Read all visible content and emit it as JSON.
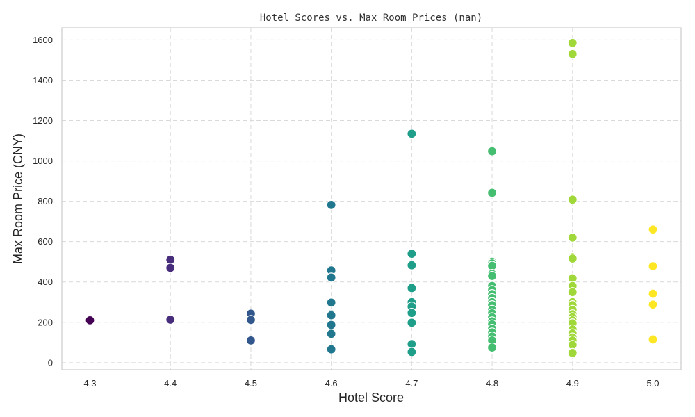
{
  "chart_data": {
    "type": "scatter",
    "title": "Hotel Scores vs. Max Room Prices (nan)",
    "xlabel": "Hotel Score",
    "ylabel": "Max Room Price (CNY)",
    "xlim": [
      4.265,
      5.035
    ],
    "ylim": [
      -35,
      1660
    ],
    "xticks": [
      "4.3",
      "4.4",
      "4.5",
      "4.6",
      "4.7",
      "4.8",
      "4.9",
      "5.0"
    ],
    "yticks": [
      "0",
      "200",
      "400",
      "600",
      "800",
      "1000",
      "1200",
      "1400",
      "1600"
    ],
    "grid": true,
    "colors": {
      "4.3": "#440154",
      "4.4": "#472d7b",
      "4.5": "#31578c",
      "4.6": "#21788e",
      "4.7": "#1f9e89",
      "4.8": "#45be71",
      "4.9": "#a0d83a",
      "5.0": "#fde725"
    },
    "points": [
      {
        "x": 4.3,
        "y": 210
      },
      {
        "x": 4.4,
        "y": 510
      },
      {
        "x": 4.4,
        "y": 470
      },
      {
        "x": 4.4,
        "y": 213
      },
      {
        "x": 4.5,
        "y": 243
      },
      {
        "x": 4.5,
        "y": 212
      },
      {
        "x": 4.5,
        "y": 110
      },
      {
        "x": 4.6,
        "y": 782
      },
      {
        "x": 4.6,
        "y": 457
      },
      {
        "x": 4.6,
        "y": 422
      },
      {
        "x": 4.6,
        "y": 298
      },
      {
        "x": 4.6,
        "y": 240
      },
      {
        "x": 4.6,
        "y": 235
      },
      {
        "x": 4.6,
        "y": 187
      },
      {
        "x": 4.6,
        "y": 143
      },
      {
        "x": 4.6,
        "y": 66
      },
      {
        "x": 4.7,
        "y": 1135
      },
      {
        "x": 4.7,
        "y": 540
      },
      {
        "x": 4.7,
        "y": 483
      },
      {
        "x": 4.7,
        "y": 370
      },
      {
        "x": 4.7,
        "y": 300
      },
      {
        "x": 4.7,
        "y": 278
      },
      {
        "x": 4.7,
        "y": 247
      },
      {
        "x": 4.7,
        "y": 198
      },
      {
        "x": 4.7,
        "y": 92
      },
      {
        "x": 4.7,
        "y": 53
      },
      {
        "x": 4.8,
        "y": 1048
      },
      {
        "x": 4.8,
        "y": 842
      },
      {
        "x": 4.8,
        "y": 500
      },
      {
        "x": 4.8,
        "y": 492
      },
      {
        "x": 4.8,
        "y": 480
      },
      {
        "x": 4.8,
        "y": 440
      },
      {
        "x": 4.8,
        "y": 430
      },
      {
        "x": 4.8,
        "y": 380
      },
      {
        "x": 4.8,
        "y": 360
      },
      {
        "x": 4.8,
        "y": 340
      },
      {
        "x": 4.8,
        "y": 320
      },
      {
        "x": 4.8,
        "y": 300
      },
      {
        "x": 4.8,
        "y": 285
      },
      {
        "x": 4.8,
        "y": 262
      },
      {
        "x": 4.8,
        "y": 245
      },
      {
        "x": 4.8,
        "y": 225
      },
      {
        "x": 4.8,
        "y": 205
      },
      {
        "x": 4.8,
        "y": 190
      },
      {
        "x": 4.8,
        "y": 168
      },
      {
        "x": 4.8,
        "y": 150
      },
      {
        "x": 4.8,
        "y": 130
      },
      {
        "x": 4.8,
        "y": 110
      },
      {
        "x": 4.8,
        "y": 75
      },
      {
        "x": 4.9,
        "y": 1585
      },
      {
        "x": 4.9,
        "y": 1530
      },
      {
        "x": 4.9,
        "y": 808
      },
      {
        "x": 4.9,
        "y": 620
      },
      {
        "x": 4.9,
        "y": 522
      },
      {
        "x": 4.9,
        "y": 516
      },
      {
        "x": 4.9,
        "y": 418
      },
      {
        "x": 4.9,
        "y": 380
      },
      {
        "x": 4.9,
        "y": 350
      },
      {
        "x": 4.9,
        "y": 300
      },
      {
        "x": 4.9,
        "y": 285
      },
      {
        "x": 4.9,
        "y": 262
      },
      {
        "x": 4.9,
        "y": 240
      },
      {
        "x": 4.9,
        "y": 225
      },
      {
        "x": 4.9,
        "y": 210
      },
      {
        "x": 4.9,
        "y": 195
      },
      {
        "x": 4.9,
        "y": 165
      },
      {
        "x": 4.9,
        "y": 145
      },
      {
        "x": 4.9,
        "y": 125
      },
      {
        "x": 4.9,
        "y": 110
      },
      {
        "x": 4.9,
        "y": 88
      },
      {
        "x": 4.9,
        "y": 48
      },
      {
        "x": 5.0,
        "y": 660
      },
      {
        "x": 5.0,
        "y": 478
      },
      {
        "x": 5.0,
        "y": 342
      },
      {
        "x": 5.0,
        "y": 288
      },
      {
        "x": 5.0,
        "y": 115
      }
    ]
  }
}
